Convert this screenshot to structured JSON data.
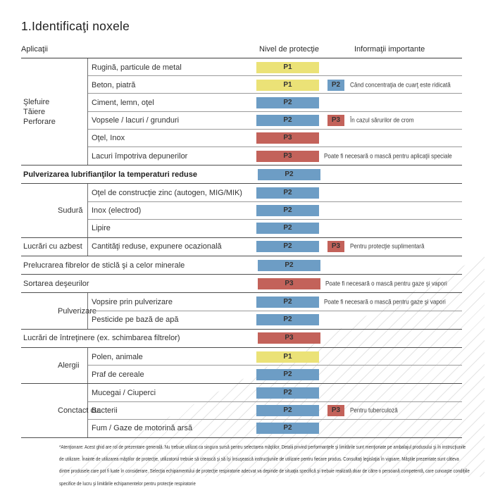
{
  "title": "1.Identificaţi noxele",
  "columns": {
    "applications": "Aplicaţii",
    "protection": "Nivel de protecţie",
    "info": "Informaţii importante"
  },
  "levels": {
    "P1": "#ebe277",
    "P2": "#6d9dc5",
    "P3": "#c3625a"
  },
  "groups": [
    {
      "label": "Şlefuire\nTăiere\nPerforare",
      "rows": [
        {
          "text": "Rugină, particule de metal",
          "level": "P1"
        },
        {
          "text": "Beton, piatră",
          "level": "P1",
          "badge": "P2",
          "note": "Când concentraţia de cuarţ este ridicată"
        },
        {
          "text": "Ciment, lemn, oţel",
          "level": "P2"
        },
        {
          "text": "Vopsele / lacuri / grunduri",
          "level": "P2",
          "badge": "P3",
          "note": "În cazul sărurilor de crom"
        },
        {
          "text": "Oţel, Inox",
          "level": "P3"
        },
        {
          "text": "Lacuri împotriva depunerilor",
          "level": "P3",
          "note": "Poate fi necesară o mască pentru aplicaţii speciale"
        }
      ]
    },
    {
      "label": "",
      "rows": [
        {
          "text": "Pulverizarea lubrifianţilor la temperaturi reduse",
          "bold": true,
          "level": "P2"
        }
      ]
    },
    {
      "label": "Sudură",
      "rows": [
        {
          "text": "Oţel de construcţie zinc (autogen, MIG/MIK)",
          "level": "P2"
        },
        {
          "text": "Inox (electrod)",
          "level": "P2"
        },
        {
          "text": "Lipire",
          "level": "P2"
        }
      ]
    },
    {
      "label": "Lucrări cu azbest",
      "rows": [
        {
          "text": "Cantităţi reduse, expunere ocazională",
          "level": "P2",
          "badge": "P3",
          "note": "Pentru protecţie suplimentară"
        }
      ]
    },
    {
      "label": "",
      "rows": [
        {
          "text": "Prelucrarea fibrelor de sticlă şi a celor minerale",
          "level": "P2"
        }
      ]
    },
    {
      "label": "",
      "rows": [
        {
          "text": "Sortarea deşeurilor",
          "level": "P3",
          "note": "Poate fi necesară o mască pentru gaze şi vapori"
        }
      ]
    },
    {
      "label": "Pulverizare",
      "rows": [
        {
          "text": "Vopsire prin pulverizare",
          "level": "P2",
          "note": "Poate fi necesară o mască pentru gaze şi vapori"
        },
        {
          "text": "Pesticide pe bază de apă",
          "level": "P2"
        }
      ]
    },
    {
      "label": "",
      "rows": [
        {
          "text": "Lucrări de întreţinere (ex. schimbarea filtrelor)",
          "level": "P3"
        }
      ]
    },
    {
      "label": "Alergii",
      "rows": [
        {
          "text": "Polen, animale",
          "level": "P1"
        },
        {
          "text": "Praf de cereale",
          "level": "P2"
        }
      ]
    },
    {
      "label": "Conctact cu:",
      "rows": [
        {
          "text": "Mucegai / Ciuperci",
          "level": "P2"
        },
        {
          "text": "Bacterii",
          "level": "P2",
          "badge": "P3",
          "note": "Pentru tuberculoză"
        },
        {
          "text": "Fum / Gaze de motorină arsă",
          "level": "P2"
        }
      ]
    }
  ],
  "footnote": {
    "lines": [
      "*Atenţionare: Acest ghid are rol de prezentare generală. Nu trebuie utilizat ca singura sursă pentru selectarea măştilor. Detalii privind performanţele şi limitările sunt menţionate pe ambalajul produsului şi în instrucţiunile",
      "de utilizare. Înainte de utilizarea măştilor de protecţie, utilizatorul trebuie să citească şi să îşi însuşească instrucţiunile de utilizare pentru fiecare produs. Consultaţi legislaţia în vigoare. Măştile prezentate sunt câteva",
      "dintre produsele care pot fi luate în considerare. Selecţia echipamentului de protecţie respiratorie adecvat va depinde de situaţia specifică şi trebuie realizată doar de către o persoană competentă, care cunoaşte condiţiile",
      "specifice de lucru şi limitările echipamentelor pentru protecţie respiratorie"
    ]
  }
}
